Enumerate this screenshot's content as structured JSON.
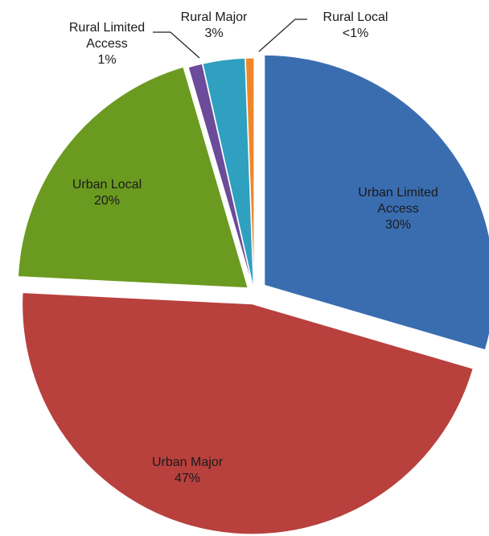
{
  "chart_data": {
    "type": "pie",
    "categories": [
      "Urban Limited Access",
      "Urban Major",
      "Urban Local",
      "Rural Limited Access",
      "Rural Major",
      "Rural Local"
    ],
    "values": [
      30,
      47,
      20,
      1,
      3,
      0.6
    ],
    "value_labels": [
      "30%",
      "47%",
      "20%",
      "1%",
      "3%",
      "<1%"
    ],
    "colors": [
      "#3a6db0",
      "#b8403d",
      "#6a9a1f",
      "#6b4b9a",
      "#2fa0bf",
      "#f0862a"
    ]
  }
}
